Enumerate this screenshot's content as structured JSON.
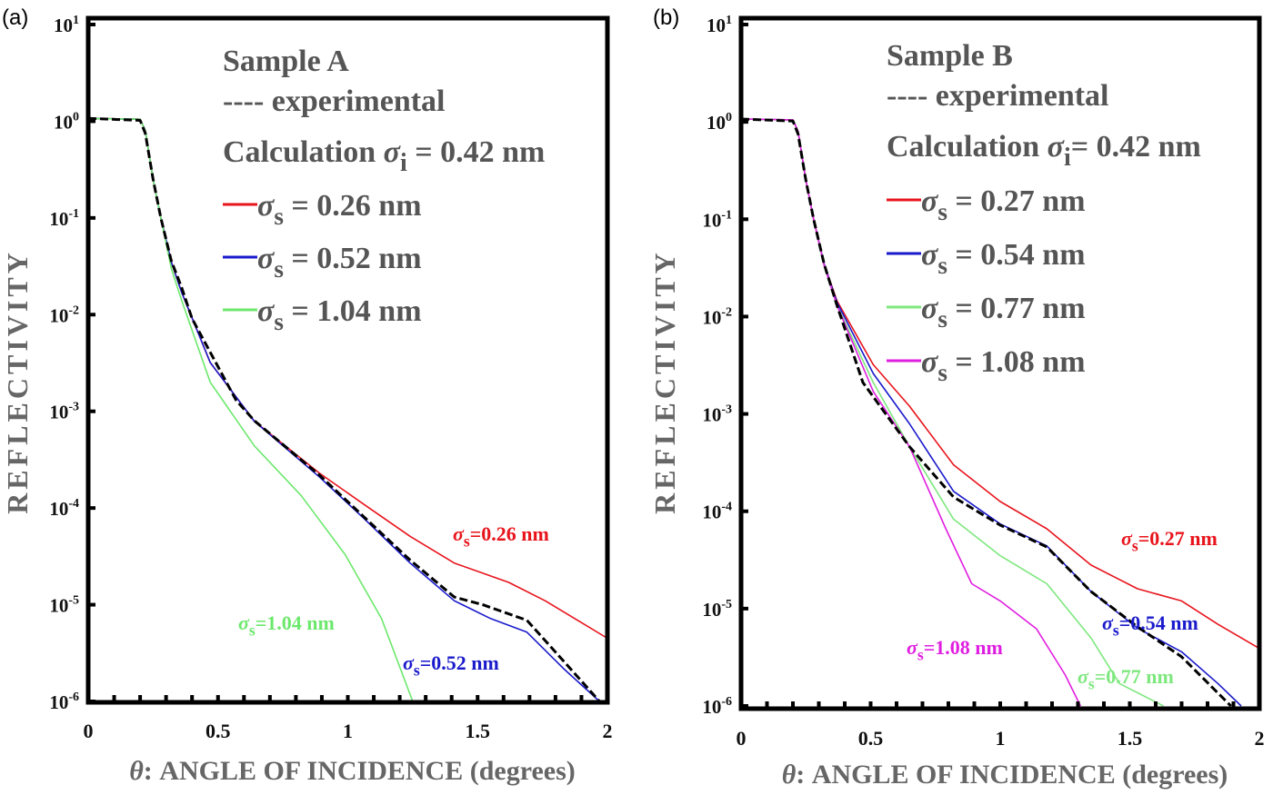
{
  "chart_data": [
    {
      "type": "line",
      "panel_label": "(a)",
      "xlabel": {
        "symbol": "θ",
        "text": ": ANGLE  OF  INCIDENCE (degrees)"
      },
      "ylabel": "REFLECTIVITY",
      "xlim": [
        0,
        2
      ],
      "ylim": [
        1e-06,
        10
      ],
      "yscale": "log",
      "x_ticks": [
        "0",
        "0.5",
        "1",
        "1.5",
        "2"
      ],
      "y_ticks": [
        {
          "base": "10",
          "exp": "1"
        },
        {
          "base": "10",
          "exp": "0"
        },
        {
          "base": "10",
          "exp": "-1"
        },
        {
          "base": "10",
          "exp": "-2"
        },
        {
          "base": "10",
          "exp": "-3"
        },
        {
          "base": "10",
          "exp": "-4"
        },
        {
          "base": "10",
          "exp": "-5"
        },
        {
          "base": "10",
          "exp": "-6"
        }
      ],
      "legend": {
        "title": "Sample  A",
        "experimental": "---- experimental",
        "calc": {
          "text": "Calculation ",
          "sym": "σ",
          "sub": "i",
          "rest": " = 0.42 nm"
        }
      },
      "series": [
        {
          "name": {
            "sym": "σ",
            "sub": "s",
            "rest": " = 0.26 nm"
          },
          "color": "#e8141c",
          "style": "solid",
          "annotation": {
            "sym": "σ",
            "sub": "s",
            "rest": "=0.26 nm"
          },
          "points": [
            [
              0,
              1.07
            ],
            [
              0.2,
              1.05
            ],
            [
              0.22,
              0.8
            ],
            [
              0.25,
              0.25
            ],
            [
              0.28,
              0.1
            ],
            [
              0.32,
              0.035
            ],
            [
              0.36,
              0.017
            ],
            [
              0.47,
              0.0032
            ],
            [
              0.64,
              0.00079
            ],
            [
              0.89,
              0.00023
            ],
            [
              1.06,
              0.00011
            ],
            [
              1.24,
              5.1e-05
            ],
            [
              1.41,
              2.7e-05
            ],
            [
              1.62,
              1.7e-05
            ],
            [
              1.76,
              1.1e-05
            ],
            [
              2.0,
              4.5e-06
            ]
          ]
        },
        {
          "name": {
            "sym": "σ",
            "sub": "s",
            "rest": " = 0.52 nm"
          },
          "color": "#1a1acc",
          "style": "solid",
          "annotation": {
            "sym": "σ",
            "sub": "s",
            "rest": "=0.52 nm"
          },
          "points": [
            [
              0,
              1.07
            ],
            [
              0.2,
              1.05
            ],
            [
              0.22,
              0.8
            ],
            [
              0.25,
              0.25
            ],
            [
              0.28,
              0.1
            ],
            [
              0.32,
              0.035
            ],
            [
              0.36,
              0.017
            ],
            [
              0.47,
              0.0032
            ],
            [
              0.64,
              0.00079
            ],
            [
              0.89,
              0.00021
            ],
            [
              1.06,
              7.9e-05
            ],
            [
              1.24,
              2.7e-05
            ],
            [
              1.41,
              1.1e-05
            ],
            [
              1.55,
              7.2e-06
            ],
            [
              1.69,
              5.2e-06
            ],
            [
              1.83,
              2.2e-06
            ],
            [
              1.97,
              1e-06
            ]
          ]
        },
        {
          "name": {
            "sym": "σ",
            "sub": "s",
            "rest": " = 1.04 nm"
          },
          "color": "#6de86d",
          "style": "solid",
          "annotation": {
            "sym": "σ",
            "sub": "s",
            "rest": "=1.04 nm"
          },
          "points": [
            [
              0,
              1.07
            ],
            [
              0.2,
              1.05
            ],
            [
              0.22,
              0.8
            ],
            [
              0.25,
              0.25
            ],
            [
              0.28,
              0.1
            ],
            [
              0.32,
              0.03
            ],
            [
              0.36,
              0.014
            ],
            [
              0.47,
              0.002
            ],
            [
              0.64,
              0.00044
            ],
            [
              0.82,
              0.000135
            ],
            [
              0.99,
              3.3e-05
            ],
            [
              1.13,
              7.2e-06
            ],
            [
              1.25,
              1e-06
            ]
          ]
        },
        {
          "name": "experimental",
          "color": "#000000",
          "style": "dashed",
          "points": [
            [
              0,
              1.07
            ],
            [
              0.2,
              1.02
            ],
            [
              0.22,
              0.75
            ],
            [
              0.25,
              0.25
            ],
            [
              0.28,
              0.1
            ],
            [
              0.32,
              0.036
            ],
            [
              0.36,
              0.019
            ],
            [
              0.4,
              0.0091
            ],
            [
              0.57,
              0.0013
            ],
            [
              0.64,
              0.0008
            ],
            [
              0.89,
              0.00022
            ],
            [
              1.06,
              8.2e-05
            ],
            [
              1.24,
              2.9e-05
            ],
            [
              1.41,
              1.2e-05
            ],
            [
              1.52,
              1e-05
            ],
            [
              1.69,
              6.9e-06
            ],
            [
              1.87,
              2e-06
            ],
            [
              1.97,
              1e-06
            ]
          ]
        }
      ]
    },
    {
      "type": "line",
      "panel_label": "(b)",
      "xlabel": {
        "symbol": "θ",
        "text": ": ANGLE  OF  INCIDENCE (degrees)"
      },
      "ylabel": "REFLECTIVITY",
      "xlim": [
        0,
        2
      ],
      "ylim": [
        1e-06,
        10
      ],
      "yscale": "log",
      "x_ticks": [
        "0",
        "0.5",
        "1",
        "1.5",
        "2"
      ],
      "y_ticks": [
        {
          "base": "10",
          "exp": "1"
        },
        {
          "base": "10",
          "exp": "0"
        },
        {
          "base": "10",
          "exp": "-1"
        },
        {
          "base": "10",
          "exp": "-2"
        },
        {
          "base": "10",
          "exp": "-3"
        },
        {
          "base": "10",
          "exp": "-4"
        },
        {
          "base": "10",
          "exp": "-5"
        },
        {
          "base": "10",
          "exp": "-6"
        }
      ],
      "legend": {
        "title": "Sample  B",
        "experimental": "---- experimental",
        "calc": {
          "text": "Calculation ",
          "sym": "σ",
          "sub": "i",
          "rest": "= 0.42 nm"
        }
      },
      "series": [
        {
          "name": {
            "sym": "σ",
            "sub": "s",
            "rest": " = 0.27 nm"
          },
          "color": "#e8141c",
          "style": "solid",
          "annotation": {
            "sym": "σ",
            "sub": "s",
            "rest": "=0.27 nm"
          },
          "points": [
            [
              0,
              1.07
            ],
            [
              0.2,
              1.05
            ],
            [
              0.22,
              0.8
            ],
            [
              0.25,
              0.25
            ],
            [
              0.28,
              0.1
            ],
            [
              0.32,
              0.035
            ],
            [
              0.37,
              0.0145
            ],
            [
              0.51,
              0.0032
            ],
            [
              0.65,
              0.0012
            ],
            [
              0.82,
              0.0003
            ],
            [
              1.0,
              0.000126
            ],
            [
              1.18,
              6.6e-05
            ],
            [
              1.35,
              2.8e-05
            ],
            [
              1.53,
              1.6e-05
            ],
            [
              1.7,
              1.2e-05
            ],
            [
              1.84,
              6.9e-06
            ],
            [
              2.0,
              3.9e-06
            ]
          ]
        },
        {
          "name": {
            "sym": "σ",
            "sub": "s",
            "rest": " = 0.54 nm"
          },
          "color": "#1a1acc",
          "style": "solid",
          "annotation": {
            "sym": "σ",
            "sub": "s",
            "rest": "=0.54 nm"
          },
          "points": [
            [
              0,
              1.07
            ],
            [
              0.2,
              1.05
            ],
            [
              0.22,
              0.8
            ],
            [
              0.25,
              0.25
            ],
            [
              0.28,
              0.1
            ],
            [
              0.32,
              0.035
            ],
            [
              0.37,
              0.014
            ],
            [
              0.51,
              0.0026
            ],
            [
              0.65,
              0.00079
            ],
            [
              0.82,
              0.00016
            ],
            [
              1.0,
              7.4e-05
            ],
            [
              1.18,
              4.4e-05
            ],
            [
              1.35,
              1.5e-05
            ],
            [
              1.53,
              6.3e-06
            ],
            [
              1.7,
              3.6e-06
            ],
            [
              1.84,
              1.7e-06
            ],
            [
              1.93,
              1e-06
            ]
          ]
        },
        {
          "name": {
            "sym": "σ",
            "sub": "s",
            "rest": " = 0.77 nm"
          },
          "color": "#7ee87e",
          "style": "solid",
          "annotation": {
            "sym": "σ",
            "sub": "s",
            "rest": "=0.77 nm"
          },
          "points": [
            [
              0,
              1.07
            ],
            [
              0.2,
              1.05
            ],
            [
              0.22,
              0.8
            ],
            [
              0.25,
              0.25
            ],
            [
              0.28,
              0.1
            ],
            [
              0.32,
              0.034
            ],
            [
              0.37,
              0.013
            ],
            [
              0.51,
              0.0021
            ],
            [
              0.65,
              0.00046
            ],
            [
              0.82,
              8.3e-05
            ],
            [
              1.0,
              3.5e-05
            ],
            [
              1.18,
              1.8e-05
            ],
            [
              1.35,
              5e-06
            ],
            [
              1.46,
              1.7e-06
            ],
            [
              1.63,
              1e-06
            ]
          ]
        },
        {
          "name": {
            "sym": "σ",
            "sub": "s",
            "rest": " = 1.08 nm"
          },
          "color": "#e01ee0",
          "style": "solid",
          "annotation": {
            "sym": "σ",
            "sub": "s",
            "rest": "=1.08 nm"
          },
          "points": [
            [
              0,
              1.07
            ],
            [
              0.2,
              1.05
            ],
            [
              0.22,
              0.8
            ],
            [
              0.25,
              0.25
            ],
            [
              0.28,
              0.1
            ],
            [
              0.32,
              0.034
            ],
            [
              0.37,
              0.013
            ],
            [
              0.51,
              0.0017
            ],
            [
              0.65,
              0.00046
            ],
            [
              0.79,
              6.6e-05
            ],
            [
              0.89,
              1.8e-05
            ],
            [
              1.0,
              1.2e-05
            ],
            [
              1.14,
              6.2e-06
            ],
            [
              1.25,
              2.1e-06
            ],
            [
              1.31,
              1e-06
            ]
          ]
        },
        {
          "name": "experimental",
          "color": "#000000",
          "style": "dashed",
          "points": [
            [
              0,
              1.07
            ],
            [
              0.2,
              1.02
            ],
            [
              0.22,
              0.75
            ],
            [
              0.25,
              0.25
            ],
            [
              0.28,
              0.1
            ],
            [
              0.32,
              0.035
            ],
            [
              0.37,
              0.013
            ],
            [
              0.47,
              0.0021
            ],
            [
              0.65,
              0.00046
            ],
            [
              0.82,
              0.00014
            ],
            [
              1.0,
              7.2e-05
            ],
            [
              1.18,
              4.3e-05
            ],
            [
              1.35,
              1.5e-05
            ],
            [
              1.53,
              6.5e-06
            ],
            [
              1.7,
              3.2e-06
            ],
            [
              1.89,
              1e-06
            ]
          ]
        }
      ]
    }
  ]
}
